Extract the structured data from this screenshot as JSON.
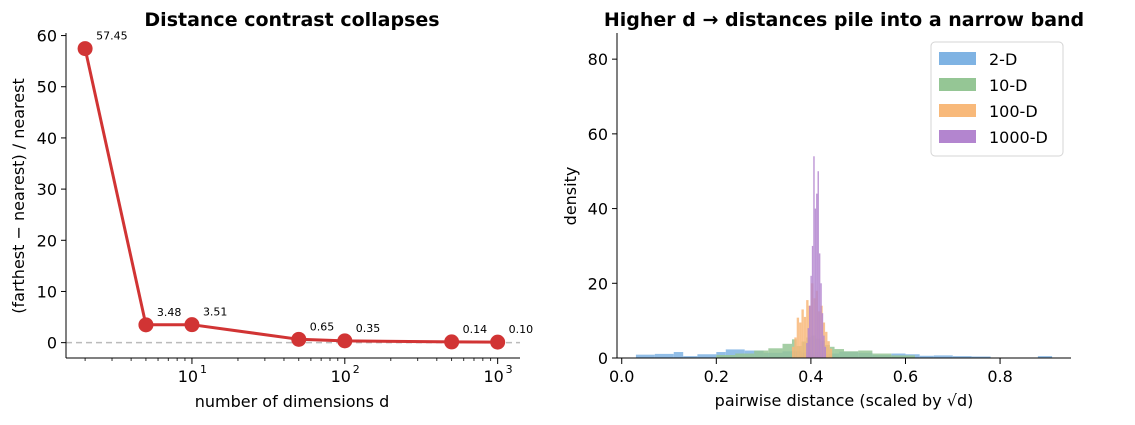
{
  "chart_data": [
    {
      "type": "line",
      "title": "Distance contrast collapses",
      "xlabel": "number of dimensions  d",
      "ylabel": "(farthest − nearest) / nearest",
      "xscale": "log",
      "xlim": [
        1.5,
        1400
      ],
      "ylim": [
        -3,
        60.5
      ],
      "yticks": [
        0,
        10,
        20,
        30,
        40,
        50,
        60
      ],
      "xticks": [
        {
          "base": "10",
          "exp": "1",
          "value": 10
        },
        {
          "base": "10",
          "exp": "2",
          "value": 100
        },
        {
          "base": "10",
          "exp": "3",
          "value": 1000
        }
      ],
      "reference_line": {
        "y": 0,
        "style": "dashed",
        "color": "#bbbbbb"
      },
      "grid": false,
      "color": "#d13434",
      "x": [
        2,
        5,
        10,
        50,
        100,
        500,
        1000
      ],
      "y": [
        57.45,
        3.48,
        3.51,
        0.65,
        0.35,
        0.14,
        0.1
      ],
      "labels": [
        "57.45",
        "3.48",
        "3.51",
        "0.65",
        "0.35",
        "0.14",
        "0.10"
      ]
    },
    {
      "type": "histogram",
      "title": "Higher d → distances pile into a narrow band",
      "xlabel": "pairwise distance (scaled by √d)",
      "ylabel": "density",
      "xlim": [
        -0.01,
        0.95
      ],
      "ylim": [
        0,
        87
      ],
      "xticks": [
        {
          "label": "0.0",
          "value": 0.0
        },
        {
          "label": "0.2",
          "value": 0.2
        },
        {
          "label": "0.4",
          "value": 0.4
        },
        {
          "label": "0.6",
          "value": 0.6
        },
        {
          "label": "0.8",
          "value": 0.8
        }
      ],
      "yticks": [
        0,
        20,
        40,
        60,
        80
      ],
      "grid": false,
      "legend_position": "top-right",
      "series": [
        {
          "name": "2-D",
          "color": "#7fb3e3",
          "bins": [
            [
              0.03,
              0.07,
              0.9
            ],
            [
              0.07,
              0.11,
              1.1
            ],
            [
              0.11,
              0.13,
              1.6
            ],
            [
              0.13,
              0.16,
              0.5
            ],
            [
              0.16,
              0.2,
              1.0
            ],
            [
              0.2,
              0.22,
              1.6
            ],
            [
              0.22,
              0.26,
              2.3
            ],
            [
              0.26,
              0.3,
              2.0
            ],
            [
              0.3,
              0.34,
              1.4
            ],
            [
              0.34,
              0.38,
              1.8
            ],
            [
              0.38,
              0.42,
              1.5
            ],
            [
              0.42,
              0.46,
              1.2
            ],
            [
              0.46,
              0.5,
              1.7
            ],
            [
              0.5,
              0.53,
              1.4
            ],
            [
              0.53,
              0.57,
              0.8
            ],
            [
              0.57,
              0.6,
              1.2
            ],
            [
              0.6,
              0.63,
              1.0
            ],
            [
              0.63,
              0.66,
              0.6
            ],
            [
              0.66,
              0.7,
              0.7
            ],
            [
              0.7,
              0.74,
              0.5
            ],
            [
              0.74,
              0.78,
              0.4
            ],
            [
              0.88,
              0.91,
              0.5
            ]
          ]
        },
        {
          "name": "10-D",
          "color": "#95c695",
          "bins": [
            [
              0.2,
              0.24,
              0.8
            ],
            [
              0.24,
              0.28,
              1.2
            ],
            [
              0.28,
              0.31,
              2.0
            ],
            [
              0.31,
              0.34,
              2.6
            ],
            [
              0.34,
              0.36,
              3.8
            ],
            [
              0.36,
              0.37,
              5.0
            ],
            [
              0.37,
              0.38,
              3.2
            ],
            [
              0.38,
              0.39,
              4.4
            ],
            [
              0.39,
              0.4,
              5.5
            ],
            [
              0.4,
              0.41,
              6.0
            ],
            [
              0.41,
              0.42,
              5.2
            ],
            [
              0.42,
              0.43,
              4.6
            ],
            [
              0.43,
              0.44,
              3.5
            ],
            [
              0.44,
              0.45,
              3.0
            ],
            [
              0.45,
              0.47,
              2.4
            ],
            [
              0.47,
              0.5,
              1.8
            ],
            [
              0.5,
              0.53,
              2.0
            ],
            [
              0.53,
              0.57,
              1.2
            ],
            [
              0.57,
              0.62,
              0.7
            ]
          ]
        },
        {
          "name": "100-D",
          "color": "#f8b97a",
          "bins": [
            [
              0.36,
              0.365,
              3.0
            ],
            [
              0.365,
              0.37,
              5.5
            ],
            [
              0.37,
              0.375,
              10.8
            ],
            [
              0.375,
              0.38,
              9.5
            ],
            [
              0.38,
              0.385,
              13.0
            ],
            [
              0.385,
              0.39,
              11.0
            ],
            [
              0.39,
              0.395,
              15.5
            ],
            [
              0.395,
              0.4,
              14.0
            ],
            [
              0.4,
              0.405,
              20.0
            ],
            [
              0.405,
              0.41,
              16.0
            ],
            [
              0.41,
              0.415,
              18.0
            ],
            [
              0.415,
              0.42,
              12.5
            ],
            [
              0.42,
              0.425,
              14.0
            ],
            [
              0.425,
              0.43,
              9.5
            ],
            [
              0.43,
              0.435,
              7.0
            ],
            [
              0.435,
              0.44,
              4.5
            ],
            [
              0.44,
              0.445,
              2.5
            ]
          ]
        },
        {
          "name": "1000-D",
          "color": "#b385cf",
          "bins": [
            [
              0.39,
              0.393,
              4.0
            ],
            [
              0.393,
              0.396,
              8.0
            ],
            [
              0.396,
              0.399,
              14.0
            ],
            [
              0.399,
              0.402,
              22.0
            ],
            [
              0.402,
              0.405,
              30.0
            ],
            [
              0.405,
              0.408,
              54.0
            ],
            [
              0.408,
              0.411,
              40.0
            ],
            [
              0.411,
              0.414,
              44.0
            ],
            [
              0.414,
              0.417,
              50.0
            ],
            [
              0.417,
              0.42,
              28.0
            ],
            [
              0.42,
              0.423,
              20.0
            ],
            [
              0.423,
              0.426,
              12.0
            ],
            [
              0.426,
              0.429,
              6.0
            ],
            [
              0.429,
              0.432,
              3.0
            ]
          ]
        }
      ]
    }
  ]
}
